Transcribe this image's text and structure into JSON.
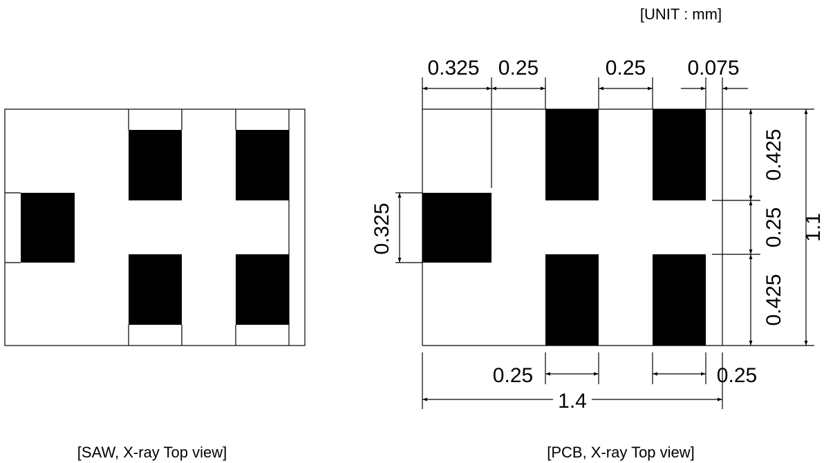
{
  "unit_label": "[UNIT : mm]",
  "saw_caption": "[SAW, X-ray Top view]",
  "pcb_caption": "[PCB, X-ray Top view]",
  "dimensions": {
    "top_1": "0.325",
    "top_2": "0.25",
    "top_3": "0.25",
    "top_4": "0.075",
    "left_height": "0.325",
    "right_1": "0.425",
    "right_2": "0.25",
    "right_3": "0.425",
    "total_height": "1.1",
    "bottom_1": "0.25",
    "bottom_2": "0.25",
    "total_width": "1.4"
  },
  "colors": {
    "pad": "#000000",
    "line": "#000000",
    "background": "#ffffff"
  }
}
